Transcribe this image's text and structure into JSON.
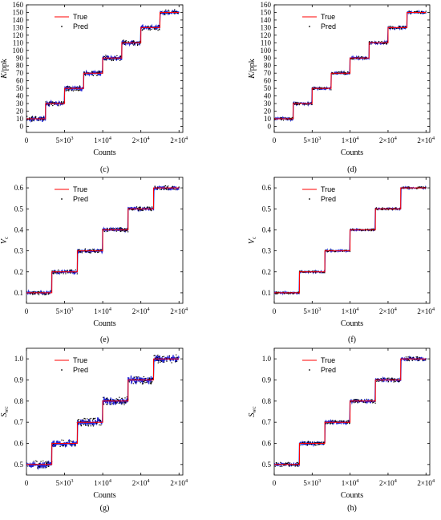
{
  "chart_data": [
    {
      "id": "c",
      "type": "line",
      "panel_label": "(c)",
      "xlabel": "Counts",
      "ylabel": "K/ppk",
      "ylabel_main": "K",
      "ylabel_rest": "/ppk",
      "xlim": [
        0,
        20500
      ],
      "ylim": [
        -8,
        160
      ],
      "yticks": [
        0,
        10,
        20,
        30,
        40,
        50,
        60,
        70,
        80,
        90,
        100,
        110,
        120,
        130,
        140,
        150,
        160
      ],
      "ytick_labels": [
        "0",
        "10",
        "20",
        "30",
        "40",
        "50",
        "60",
        "70",
        "80",
        "90",
        "100",
        "110",
        "120",
        "130",
        "140",
        "150",
        "160"
      ],
      "xticks": [
        0,
        5000,
        10000,
        15000,
        20000
      ],
      "xtick_labels": [
        "0",
        "5×10",
        "1×10",
        "2×10",
        "2×10"
      ],
      "xtick_exponents": [
        "",
        "3",
        "4",
        "4",
        "4"
      ],
      "legend": {
        "position": "top-left",
        "entries": [
          "True",
          "Pred"
        ]
      },
      "series": [
        {
          "name": "True",
          "kind": "step",
          "color": "#ff0000",
          "x": [
            0,
            2500,
            5000,
            7500,
            10000,
            12500,
            15000,
            17500,
            20000
          ],
          "y": [
            10,
            30,
            50,
            70,
            90,
            110,
            130,
            150,
            150
          ]
        },
        {
          "name": "Pred",
          "kind": "noisy-step",
          "color": "#0000cc",
          "noise": 2.2,
          "x": [
            0,
            2500,
            5000,
            7500,
            10000,
            12500,
            15000,
            17500,
            20000
          ],
          "y": [
            10,
            30,
            50,
            70,
            90,
            110,
            130,
            150,
            150
          ]
        }
      ]
    },
    {
      "id": "d",
      "type": "line",
      "panel_label": "(d)",
      "xlabel": "Counts",
      "ylabel": "K/ppk",
      "ylabel_main": "K",
      "ylabel_rest": "/ppk",
      "xlim": [
        0,
        20500
      ],
      "ylim": [
        -8,
        160
      ],
      "yticks": [
        0,
        10,
        20,
        30,
        40,
        50,
        60,
        70,
        80,
        90,
        100,
        110,
        120,
        130,
        140,
        150,
        160
      ],
      "ytick_labels": [
        "0",
        "10",
        "20",
        "30",
        "40",
        "50",
        "60",
        "70",
        "80",
        "90",
        "100",
        "110",
        "120",
        "130",
        "140",
        "150",
        "160"
      ],
      "xticks": [
        0,
        5000,
        10000,
        15000,
        20000
      ],
      "xtick_labels": [
        "0",
        "5×10",
        "1×10",
        "2×10",
        "2×10"
      ],
      "xtick_exponents": [
        "",
        "3",
        "4",
        "4",
        "4"
      ],
      "legend": {
        "position": "top-left",
        "entries": [
          "True",
          "Pred"
        ]
      },
      "series": [
        {
          "name": "True",
          "kind": "step",
          "color": "#ff0000",
          "x": [
            0,
            2500,
            5000,
            7500,
            10000,
            12500,
            15000,
            17500,
            20000
          ],
          "y": [
            10,
            30,
            50,
            70,
            90,
            110,
            130,
            150,
            150
          ]
        },
        {
          "name": "Pred",
          "kind": "noisy-step",
          "color": "#0000cc",
          "noise": 1.2,
          "x": [
            0,
            2500,
            5000,
            7500,
            10000,
            12500,
            15000,
            17500,
            20000
          ],
          "y": [
            10,
            30,
            50,
            70,
            90,
            110,
            130,
            150,
            150
          ]
        }
      ]
    },
    {
      "id": "e",
      "type": "line",
      "panel_label": "(e)",
      "xlabel": "Counts",
      "ylabel": "Vc",
      "ylabel_main": "V",
      "ylabel_sub": "c",
      "xlim": [
        0,
        20500
      ],
      "ylim": [
        0.05,
        0.65
      ],
      "yticks": [
        0.1,
        0.2,
        0.3,
        0.4,
        0.5,
        0.6
      ],
      "ytick_labels": [
        "0.1",
        "0.2",
        "0.3",
        "0.4",
        "0.5",
        "0.6"
      ],
      "xticks": [
        0,
        5000,
        10000,
        15000,
        20000
      ],
      "xtick_labels": [
        "0",
        "5×10",
        "1×10",
        "2×10",
        "2×10"
      ],
      "xtick_exponents": [
        "",
        "3",
        "4",
        "4",
        "4"
      ],
      "legend": {
        "position": "top-left",
        "entries": [
          "True",
          "Pred"
        ]
      },
      "series": [
        {
          "name": "True",
          "kind": "step",
          "color": "#ff0000",
          "x": [
            0,
            3333,
            6667,
            10000,
            13333,
            16667,
            20000
          ],
          "y": [
            0.1,
            0.2,
            0.3,
            0.4,
            0.5,
            0.6,
            0.6
          ]
        },
        {
          "name": "Pred",
          "kind": "noisy-step",
          "color": "#0000cc",
          "noise": 0.006,
          "x": [
            0,
            3333,
            6667,
            10000,
            13333,
            16667,
            20000
          ],
          "y": [
            0.1,
            0.2,
            0.3,
            0.4,
            0.5,
            0.6,
            0.6
          ]
        }
      ]
    },
    {
      "id": "f",
      "type": "line",
      "panel_label": "(f)",
      "xlabel": "Counts",
      "ylabel": "Vc",
      "ylabel_main": "V",
      "ylabel_sub": "c",
      "xlim": [
        0,
        20500
      ],
      "ylim": [
        0.05,
        0.65
      ],
      "yticks": [
        0.1,
        0.2,
        0.3,
        0.4,
        0.5,
        0.6
      ],
      "ytick_labels": [
        "0.1",
        "0.2",
        "0.3",
        "0.4",
        "0.5",
        "0.6"
      ],
      "xticks": [
        0,
        5000,
        10000,
        15000,
        20000
      ],
      "xtick_labels": [
        "0",
        "5×10",
        "1×10",
        "2×10",
        "2×10"
      ],
      "xtick_exponents": [
        "",
        "3",
        "4",
        "4",
        "4"
      ],
      "legend": {
        "position": "top-left",
        "entries": [
          "True",
          "Pred"
        ]
      },
      "series": [
        {
          "name": "True",
          "kind": "step",
          "color": "#ff0000",
          "x": [
            0,
            3333,
            6667,
            10000,
            13333,
            16667,
            20000
          ],
          "y": [
            0.1,
            0.2,
            0.3,
            0.4,
            0.5,
            0.6,
            0.6
          ]
        },
        {
          "name": "Pred",
          "kind": "noisy-step",
          "color": "#0000cc",
          "noise": 0.003,
          "x": [
            0,
            3333,
            6667,
            10000,
            13333,
            16667,
            20000
          ],
          "y": [
            0.1,
            0.2,
            0.3,
            0.4,
            0.5,
            0.6,
            0.6
          ]
        }
      ]
    },
    {
      "id": "g",
      "type": "line",
      "panel_label": "(g)",
      "xlabel": "Counts",
      "ylabel": "Swc",
      "ylabel_main": "S",
      "ylabel_sub": "wc",
      "xlim": [
        0,
        20500
      ],
      "ylim": [
        0.45,
        1.05
      ],
      "yticks": [
        0.5,
        0.6,
        0.7,
        0.8,
        0.9,
        1.0
      ],
      "ytick_labels": [
        "0.5",
        "0.6",
        "0.7",
        "0.8",
        "0.9",
        "1.0"
      ],
      "xticks": [
        0,
        5000,
        10000,
        15000,
        20000
      ],
      "xtick_labels": [
        "0",
        "5×10",
        "1×10",
        "2×10",
        "2×10"
      ],
      "xtick_exponents": [
        "",
        "3",
        "4",
        "4",
        "4"
      ],
      "legend": {
        "position": "top-left",
        "entries": [
          "True",
          "Pred"
        ]
      },
      "series": [
        {
          "name": "True",
          "kind": "step",
          "color": "#ff0000",
          "x": [
            0,
            3333,
            6667,
            10000,
            13333,
            16667,
            20000
          ],
          "y": [
            0.5,
            0.6,
            0.7,
            0.8,
            0.9,
            1.0,
            1.0
          ]
        },
        {
          "name": "Pred",
          "kind": "noisy-step",
          "color": "#0000cc",
          "noise": 0.012,
          "x": [
            0,
            3333,
            6667,
            10000,
            13333,
            16667,
            20000
          ],
          "y": [
            0.5,
            0.6,
            0.7,
            0.8,
            0.9,
            1.0,
            1.0
          ]
        }
      ]
    },
    {
      "id": "h",
      "type": "line",
      "panel_label": "(h)",
      "xlabel": "Counts",
      "ylabel": "Swc",
      "ylabel_main": "S",
      "ylabel_sub": "wc",
      "xlim": [
        0,
        20500
      ],
      "ylim": [
        0.45,
        1.05
      ],
      "yticks": [
        0.5,
        0.6,
        0.7,
        0.8,
        0.9,
        1.0
      ],
      "ytick_labels": [
        "0.5",
        "0.6",
        "0.7",
        "0.8",
        "0.9",
        "1.0"
      ],
      "xticks": [
        0,
        5000,
        10000,
        15000,
        20000
      ],
      "xtick_labels": [
        "0",
        "5×10",
        "1×10",
        "2×10",
        "2×10"
      ],
      "xtick_exponents": [
        "",
        "3",
        "4",
        "4",
        "4"
      ],
      "legend": {
        "position": "top-left",
        "entries": [
          "True",
          "Pred"
        ]
      },
      "series": [
        {
          "name": "True",
          "kind": "step",
          "color": "#ff0000",
          "x": [
            0,
            3333,
            6667,
            10000,
            13333,
            16667,
            20000
          ],
          "y": [
            0.5,
            0.6,
            0.7,
            0.8,
            0.9,
            1.0,
            1.0
          ]
        },
        {
          "name": "Pred",
          "kind": "noisy-step",
          "color": "#0000cc",
          "noise": 0.006,
          "x": [
            0,
            3333,
            6667,
            10000,
            13333,
            16667,
            20000
          ],
          "y": [
            0.5,
            0.6,
            0.7,
            0.8,
            0.9,
            1.0,
            1.0
          ]
        }
      ]
    }
  ]
}
